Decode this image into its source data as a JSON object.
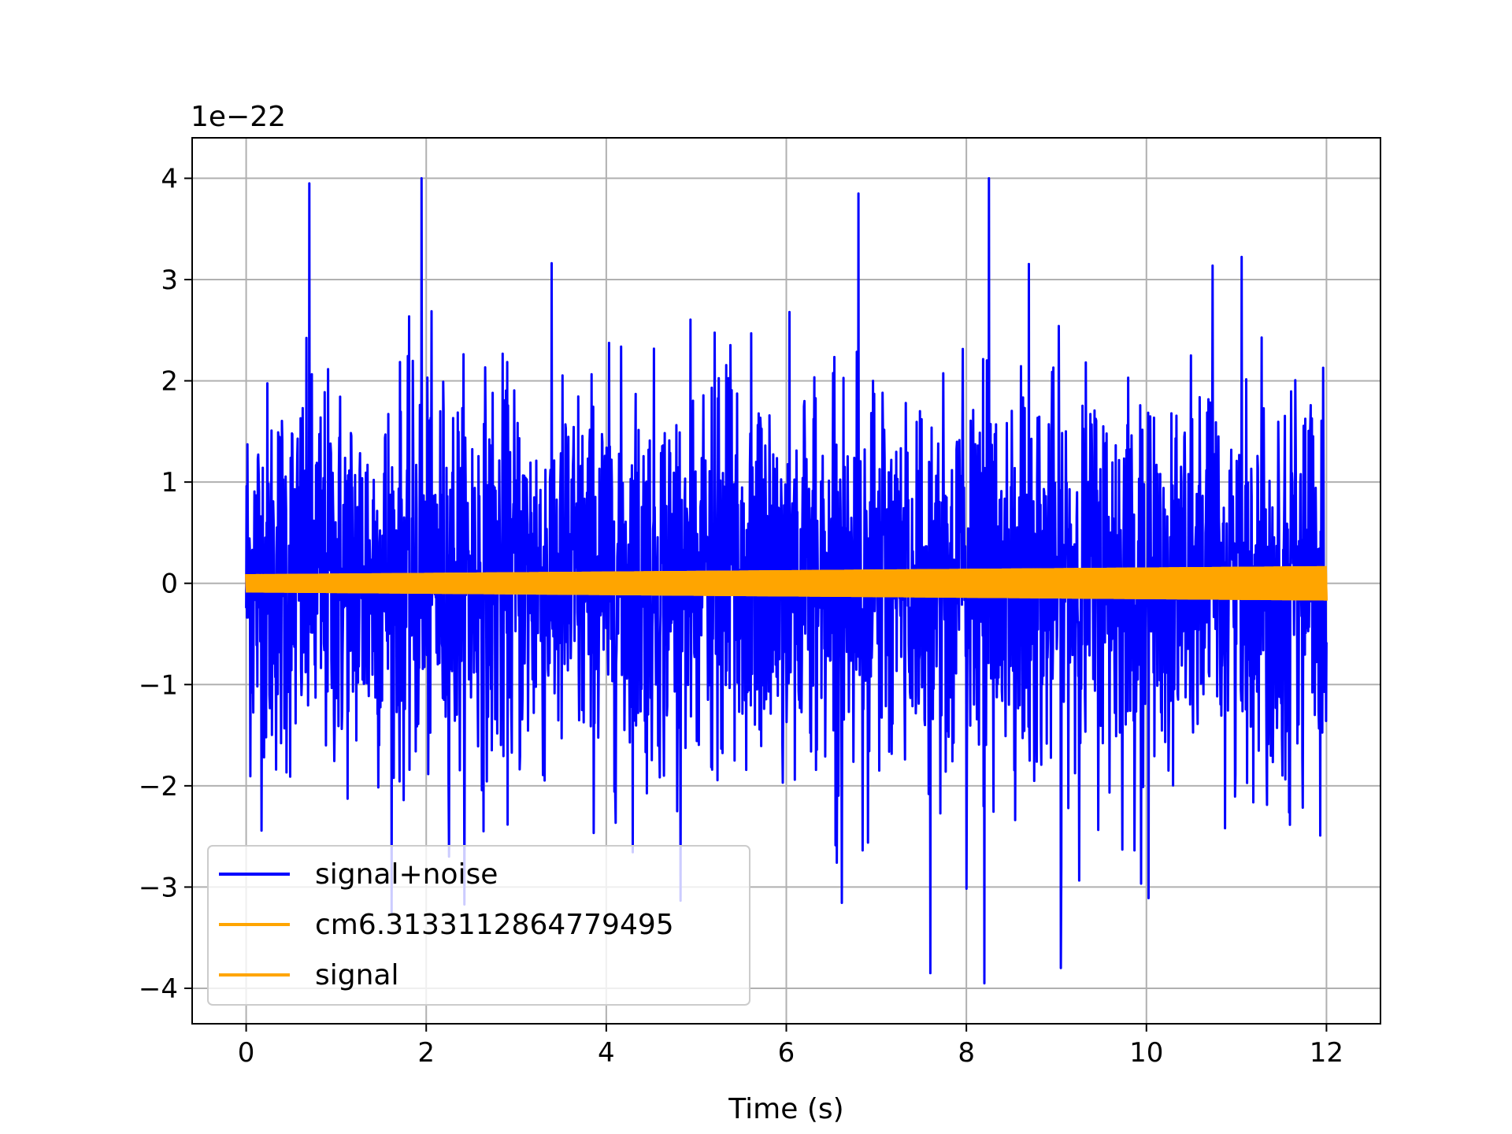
{
  "chart_data": {
    "type": "line",
    "title": "",
    "xlabel": "Time (s)",
    "ylabel": "",
    "y_offset_text": "1e−22",
    "xlim": [
      -0.6,
      12.6
    ],
    "ylim": [
      -4.35,
      4.4
    ],
    "x_ticks": [
      0,
      2,
      4,
      6,
      8,
      10,
      12
    ],
    "x_tick_labels": [
      "0",
      "2",
      "4",
      "6",
      "8",
      "10",
      "12"
    ],
    "y_ticks": [
      -4,
      -3,
      -2,
      -1,
      0,
      1,
      2,
      3,
      4
    ],
    "y_tick_labels": [
      "−4",
      "−3",
      "−2",
      "−1",
      "0",
      "1",
      "2",
      "3",
      "4"
    ],
    "grid": true,
    "legend_position": "lower-left",
    "series": [
      {
        "name": "signal+noise",
        "color": "#0000ff",
        "x_range": [
          0,
          12
        ],
        "envelope_mid": [
          -2.2,
          2.2
        ],
        "peak_max": 4.0,
        "peak_min": -3.9,
        "notable_peaks": [
          {
            "x": 0.7,
            "y": 3.95
          },
          {
            "x": 1.95,
            "y": 4.0
          },
          {
            "x": 6.8,
            "y": 3.85
          },
          {
            "x": 8.25,
            "y": 4.0
          },
          {
            "x": 7.6,
            "y": -3.85
          },
          {
            "x": 8.2,
            "y": -3.95
          },
          {
            "x": 9.05,
            "y": -3.8
          }
        ]
      },
      {
        "name": "cm6.3133112864779495",
        "color": "#ffa500",
        "x_range": [
          0,
          12
        ],
        "amplitude_start": 0.09,
        "amplitude_end": 0.17
      },
      {
        "name": "signal",
        "color": "#ffa500",
        "x_range": [
          0,
          12
        ],
        "amplitude_start": 0.09,
        "amplitude_end": 0.17
      }
    ]
  }
}
